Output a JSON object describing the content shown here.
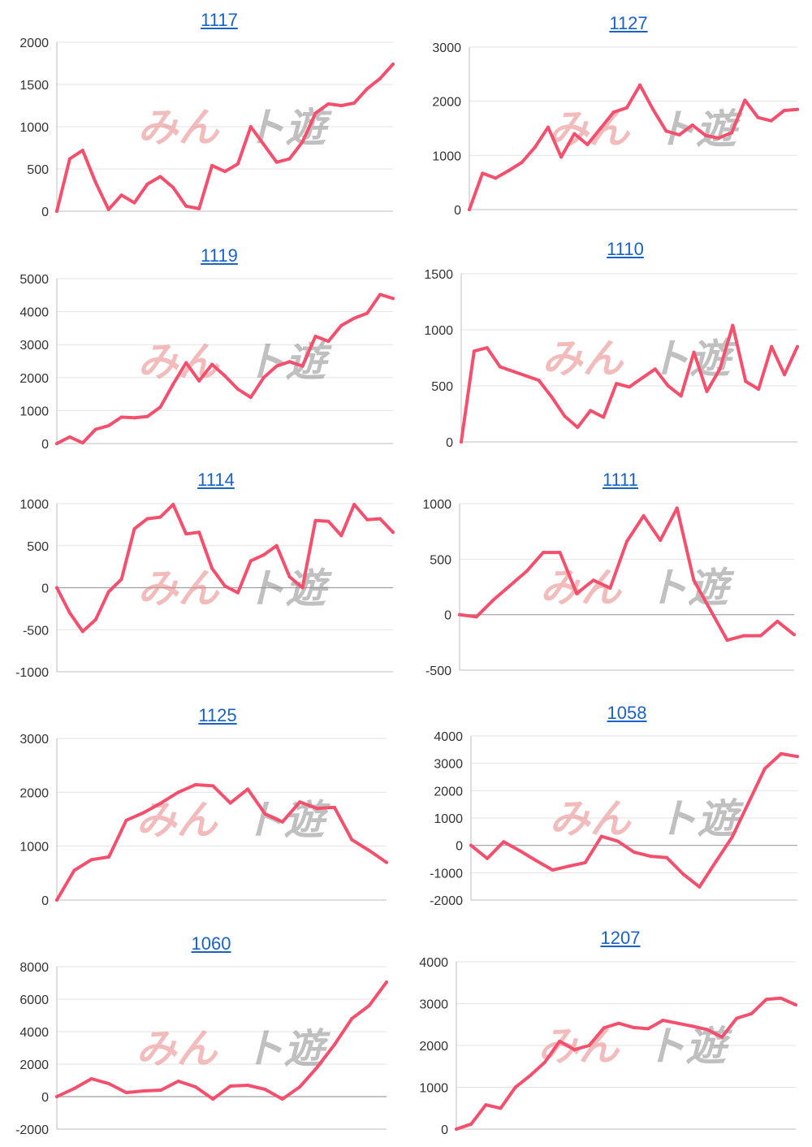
{
  "line_color": "#f4506e",
  "title_color": "#1a62c6",
  "watermark": {
    "part1": "みん",
    "part2": "ト遊",
    "colors": [
      "#e88585",
      "#8c8c8c"
    ]
  },
  "chart_data": [
    {
      "type": "line",
      "title": "1117",
      "ylim": [
        0,
        2000
      ],
      "yticks": [
        0,
        500,
        1000,
        1500,
        2000
      ],
      "values": [
        0,
        620,
        720,
        340,
        20,
        190,
        100,
        320,
        410,
        280,
        60,
        30,
        540,
        470,
        560,
        1000,
        790,
        580,
        620,
        820,
        1160,
        1270,
        1250,
        1280,
        1450,
        1570,
        1740
      ]
    },
    {
      "type": "line",
      "title": "1127",
      "ylim": [
        0,
        3000
      ],
      "yticks": [
        0,
        1000,
        2000,
        3000
      ],
      "values": [
        0,
        670,
        580,
        720,
        870,
        1150,
        1520,
        970,
        1400,
        1200,
        1500,
        1800,
        1880,
        2300,
        1850,
        1450,
        1380,
        1560,
        1370,
        1320,
        1420,
        2020,
        1700,
        1640,
        1830,
        1850
      ]
    },
    {
      "type": "line",
      "title": "1119",
      "ylim": [
        0,
        5000
      ],
      "yticks": [
        0,
        1000,
        2000,
        3000,
        4000,
        5000
      ],
      "values": [
        0,
        200,
        20,
        430,
        540,
        800,
        780,
        820,
        1100,
        1800,
        2450,
        1900,
        2400,
        2050,
        1650,
        1400,
        2000,
        2350,
        2480,
        2350,
        3250,
        3100,
        3580,
        3800,
        3950,
        4520,
        4400
      ]
    },
    {
      "type": "line",
      "title": "1110",
      "ylim": [
        0,
        1500
      ],
      "yticks": [
        0,
        500,
        1000,
        1500
      ],
      "values": [
        0,
        810,
        840,
        670,
        630,
        590,
        550,
        400,
        230,
        130,
        280,
        220,
        520,
        490,
        570,
        650,
        500,
        410,
        800,
        450,
        650,
        1040,
        540,
        470,
        850,
        600,
        850
      ]
    },
    {
      "type": "line",
      "title": "1114",
      "ylim": [
        -1000,
        1000
      ],
      "yticks": [
        -1000,
        -500,
        0,
        500,
        1000
      ],
      "values": [
        0,
        -300,
        -520,
        -380,
        -50,
        100,
        700,
        820,
        840,
        990,
        640,
        660,
        230,
        20,
        -60,
        320,
        390,
        500,
        130,
        0,
        800,
        790,
        620,
        990,
        810,
        820,
        660
      ]
    },
    {
      "type": "line",
      "title": "1111",
      "ylim": [
        -500,
        1000
      ],
      "yticks": [
        -500,
        0,
        500,
        1000
      ],
      "values": [
        0,
        -20,
        130,
        260,
        390,
        560,
        560,
        190,
        310,
        240,
        660,
        890,
        670,
        960,
        310,
        40,
        -230,
        -190,
        -190,
        -60,
        -180
      ]
    },
    {
      "type": "line",
      "title": "1125",
      "ylim": [
        0,
        3000
      ],
      "yticks": [
        0,
        1000,
        2000,
        3000
      ],
      "values": [
        0,
        550,
        750,
        800,
        1480,
        1620,
        1800,
        2000,
        2140,
        2120,
        1800,
        2060,
        1600,
        1450,
        1820,
        1700,
        1720,
        1120,
        920,
        700
      ]
    },
    {
      "type": "line",
      "title": "1058",
      "ylim": [
        -2000,
        4000
      ],
      "yticks": [
        -2000,
        -1000,
        0,
        1000,
        2000,
        3000,
        4000
      ],
      "values": [
        0,
        -480,
        130,
        -200,
        -560,
        -900,
        -760,
        -630,
        330,
        150,
        -250,
        -400,
        -450,
        -1050,
        -1520,
        -600,
        300,
        1550,
        2800,
        3350,
        3250
      ]
    },
    {
      "type": "line",
      "title": "1060",
      "ylim": [
        -2000,
        8000
      ],
      "yticks": [
        -2000,
        0,
        2000,
        4000,
        6000,
        8000
      ],
      "values": [
        0,
        500,
        1100,
        800,
        250,
        350,
        400,
        950,
        600,
        -150,
        650,
        700,
        450,
        -150,
        600,
        1800,
        3200,
        4800,
        5600,
        7050
      ]
    },
    {
      "type": "line",
      "title": "1207",
      "ylim": [
        0,
        4000
      ],
      "yticks": [
        0,
        1000,
        2000,
        3000,
        4000
      ],
      "values": [
        0,
        120,
        580,
        500,
        1000,
        1280,
        1600,
        2100,
        1900,
        2000,
        2420,
        2530,
        2430,
        2400,
        2600,
        2530,
        2460,
        2380,
        2200,
        2650,
        2760,
        3100,
        3130,
        2970
      ]
    }
  ]
}
